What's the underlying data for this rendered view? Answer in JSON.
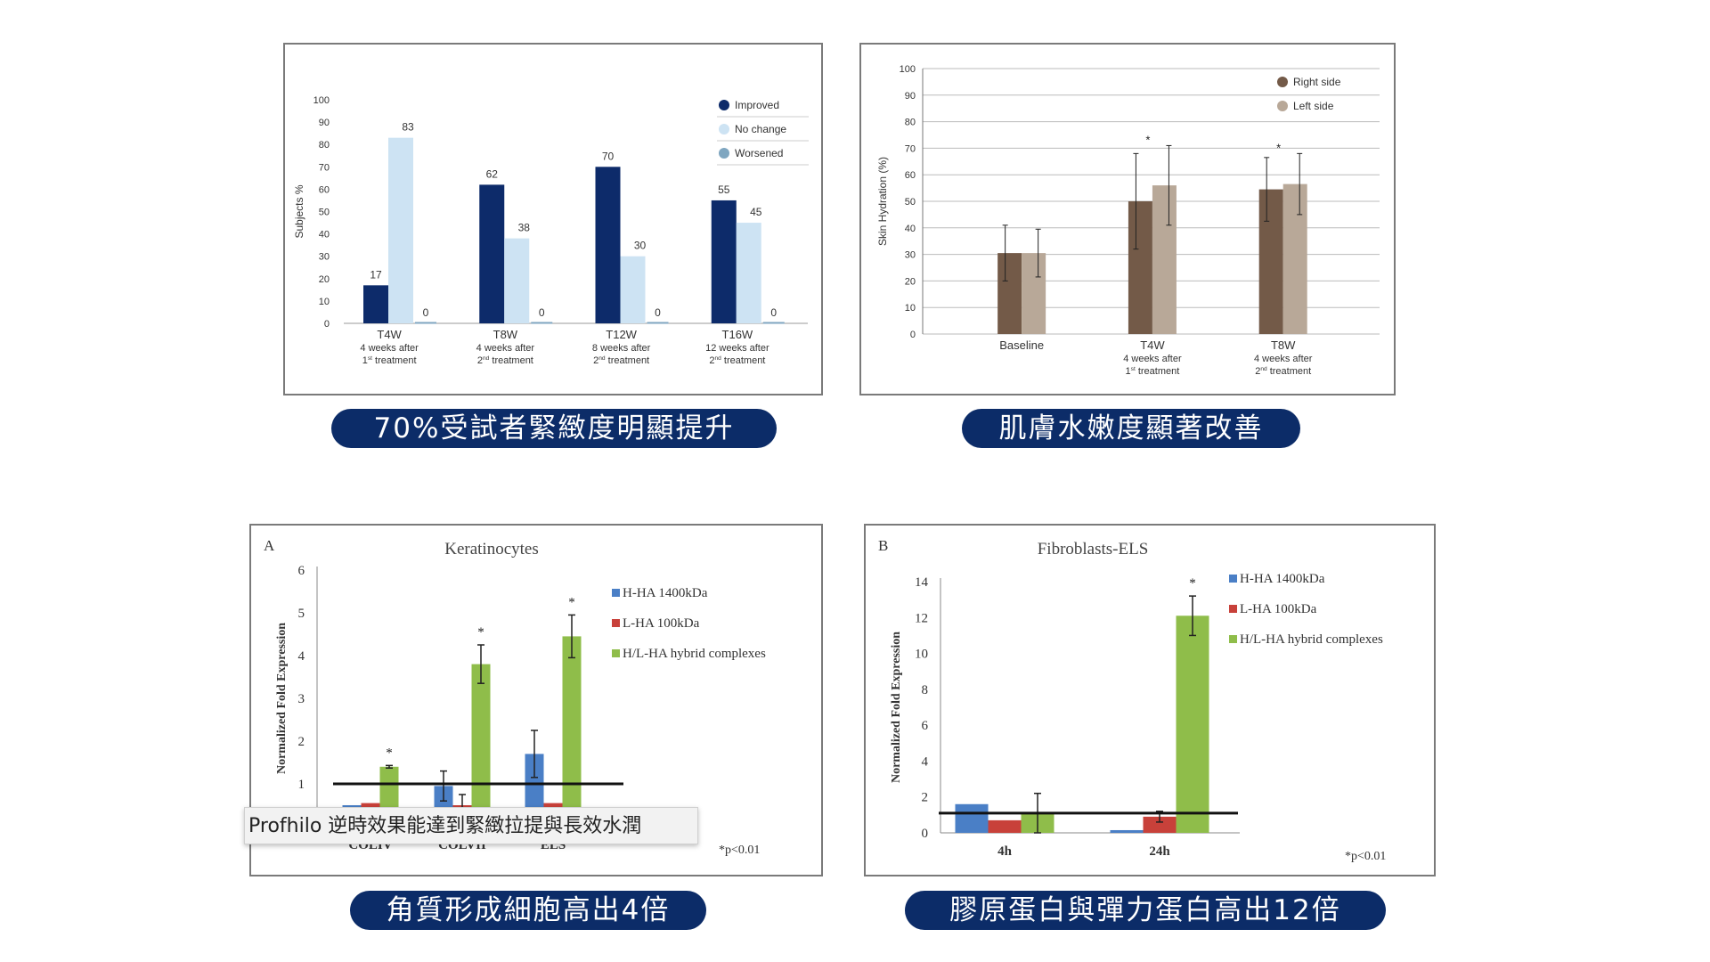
{
  "captions": {
    "c1": "70%受試者緊緻度明顯提升",
    "c2": "肌膚水嫩度顯著改善",
    "c3": "角質形成細胞高出4倍",
    "c4": "膠原蛋白與彈力蛋白高出12倍"
  },
  "tooltip": "Profhilo 逆時效果能達到緊緻拉提與長效水潤",
  "chart_data": [
    {
      "type": "bar",
      "title": "",
      "ylabel": "Subjects %",
      "ylim": [
        0,
        100
      ],
      "yticks": [
        0,
        10,
        20,
        30,
        40,
        50,
        60,
        70,
        80,
        90,
        100
      ],
      "categories": [
        "T4W",
        "T8W",
        "T12W",
        "T16W"
      ],
      "category_sublabels": [
        [
          "4 weeks after",
          "1st treatment"
        ],
        [
          "4 weeks after",
          "2nd treatment"
        ],
        [
          "8 weeks after",
          "2nd treatment"
        ],
        [
          "12 weeks after",
          "2nd treatment"
        ]
      ],
      "series": [
        {
          "name": "Improved",
          "color": "#0d2b6a",
          "values": [
            17,
            62,
            70,
            55
          ]
        },
        {
          "name": "No change",
          "color": "#cde3f3",
          "values": [
            83,
            38,
            30,
            45
          ]
        },
        {
          "name": "Worsened",
          "color": "#7fa6c0",
          "values": [
            0,
            0,
            0,
            0
          ]
        }
      ],
      "data_labels": [
        [
          "17",
          "83",
          "0"
        ],
        [
          "62",
          "38",
          "0"
        ],
        [
          "70",
          "30",
          "0"
        ],
        [
          "55",
          "45",
          "0"
        ]
      ],
      "legend": "top-right"
    },
    {
      "type": "bar",
      "title": "",
      "ylabel": "Skin Hydration (%)",
      "ylim": [
        0,
        100
      ],
      "yticks": [
        0,
        10,
        20,
        30,
        40,
        50,
        60,
        70,
        80,
        90,
        100
      ],
      "categories": [
        "Baseline",
        "T4W",
        "T8W"
      ],
      "category_sublabels": [
        [],
        [
          "4 weeks after",
          "1st treatment"
        ],
        [
          "4 weeks after",
          "2nd treatment"
        ]
      ],
      "series": [
        {
          "name": "Right side",
          "color": "#735a48",
          "values": [
            30.5,
            50,
            54.5
          ],
          "error": [
            10.5,
            18,
            12
          ]
        },
        {
          "name": "Left side",
          "color": "#b8a898",
          "values": [
            30.5,
            56,
            56.5
          ],
          "error": [
            9,
            15,
            11.5
          ]
        }
      ],
      "significance": [
        "",
        "*",
        "*"
      ],
      "legend": "top-right",
      "grid": true
    },
    {
      "type": "bar",
      "panel_letter": "A",
      "title": "Keratinocytes",
      "ylabel": "Normalized Fold Expression",
      "ylim": [
        0,
        6
      ],
      "yticks": [
        1,
        2,
        3,
        4,
        5,
        6
      ],
      "categories": [
        "COLIV",
        "COLVII",
        "ELS"
      ],
      "series": [
        {
          "name": "H-HA 1400kDa",
          "color": "#4a7fc6",
          "values": [
            0.5,
            0.95,
            1.7
          ],
          "error": [
            0,
            0.35,
            0.55
          ]
        },
        {
          "name": "L-HA 100kDa",
          "color": "#c8413a",
          "values": [
            0.55,
            0.5,
            0.55
          ],
          "error": [
            0,
            0.25,
            0
          ]
        },
        {
          "name": "H/L-HA hybrid complexes",
          "color": "#8fbd4a",
          "values": [
            1.4,
            3.8,
            4.45
          ],
          "error": [
            0.03,
            0.45,
            0.5
          ]
        }
      ],
      "significance": [
        "*",
        "*",
        "*"
      ],
      "reference_line": 1,
      "footnote": "*p<0.01",
      "legend": "top-right"
    },
    {
      "type": "bar",
      "panel_letter": "B",
      "title": "Fibroblasts-ELS",
      "ylabel": "Normalized Fold Expression",
      "ylim": [
        0,
        14
      ],
      "yticks": [
        0,
        2,
        4,
        6,
        8,
        10,
        12,
        14
      ],
      "categories": [
        "4h",
        "24h"
      ],
      "series": [
        {
          "name": "H-HA 1400kDa",
          "color": "#4a7fc6",
          "values": [
            1.6,
            0.15
          ],
          "error": [
            0,
            0
          ]
        },
        {
          "name": "L-HA 100kDa",
          "color": "#c8413a",
          "values": [
            0.7,
            0.9
          ],
          "error": [
            0,
            0.3
          ]
        },
        {
          "name": "H/L-HA hybrid complexes",
          "color": "#8fbd4a",
          "values": [
            1.1,
            12.1
          ],
          "error": [
            1.1,
            1.1
          ]
        }
      ],
      "significance": [
        "",
        "*"
      ],
      "reference_line": 1.1,
      "footnote": "*p<0.01",
      "legend": "top-right"
    }
  ]
}
